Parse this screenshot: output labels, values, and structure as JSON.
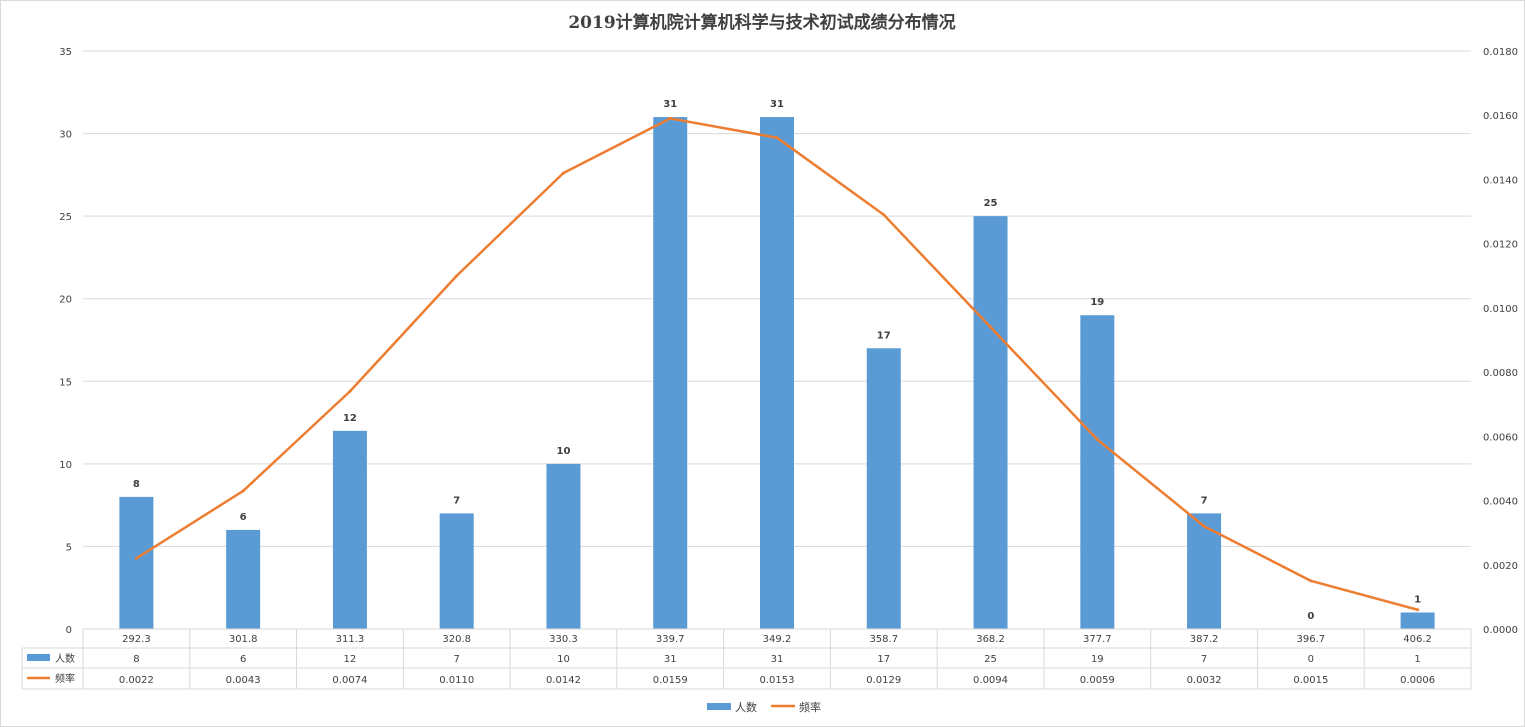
{
  "chart_data": {
    "type": "bar",
    "title": "2019计算机院计算机科学与技术初试成绩分布情况",
    "categories": [
      "292.3",
      "301.8",
      "311.3",
      "320.8",
      "330.3",
      "339.7",
      "349.2",
      "358.7",
      "368.2",
      "377.7",
      "387.2",
      "396.7",
      "406.2"
    ],
    "series": [
      {
        "name": "人数",
        "type": "bar",
        "axis": "left",
        "color": "#5b9bd5",
        "values": [
          8,
          6,
          12,
          7,
          10,
          31,
          31,
          17,
          25,
          19,
          7,
          0,
          1
        ],
        "labels": [
          "8",
          "6",
          "12",
          "7",
          "10",
          "31",
          "31",
          "17",
          "25",
          "19",
          "7",
          "0",
          "1"
        ]
      },
      {
        "name": "频率",
        "type": "line",
        "axis": "right",
        "color": "#ed7d31",
        "values": [
          0.0022,
          0.0043,
          0.0074,
          0.011,
          0.0142,
          0.0159,
          0.0153,
          0.0129,
          0.0094,
          0.0059,
          0.0032,
          0.0015,
          0.0006
        ],
        "labels": [
          "0.0022",
          "0.0043",
          "0.0074",
          "0.0110",
          "0.0142",
          "0.0159",
          "0.0153",
          "0.0129",
          "0.0094",
          "0.0059",
          "0.0032",
          "0.0015",
          "0.0006"
        ]
      }
    ],
    "ylim": [
      0,
      35
    ],
    "y2lim": [
      0,
      0.018
    ],
    "yticks": [
      "0",
      "5",
      "10",
      "15",
      "20",
      "25",
      "30",
      "35"
    ],
    "y2ticks": [
      "0.0000",
      "0.0020",
      "0.0040",
      "0.0060",
      "0.0080",
      "0.0100",
      "0.0120",
      "0.0140",
      "0.0160",
      "0.0180"
    ],
    "grid": true,
    "data_table": true,
    "legend_position": "bottom"
  }
}
